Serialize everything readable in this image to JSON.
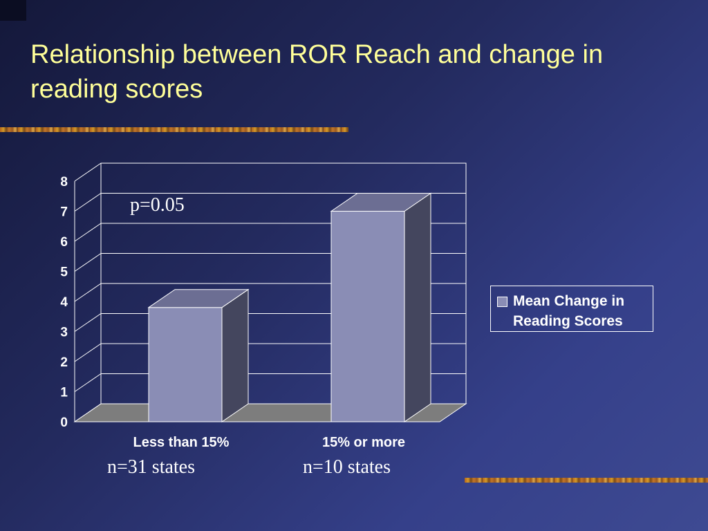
{
  "slide": {
    "title": "Relationship between ROR Reach and change in reading scores"
  },
  "annotations": {
    "p_value": "p=0.05",
    "group_counts": [
      "n=31 states",
      "n=10 states"
    ]
  },
  "colors": {
    "bar_front": "#8a8db5",
    "bar_top": "#6c6e93",
    "bar_side": "#44465e",
    "floor": "#7d7d7d",
    "title": "#ffff99"
  },
  "chart_data": {
    "type": "bar",
    "categories": [
      "Less than 15%",
      "15% or more"
    ],
    "series": [
      {
        "name": "Mean Change in Reading Scores",
        "values": [
          3.8,
          7.0
        ]
      }
    ],
    "title": "",
    "xlabel": "",
    "ylabel": "",
    "ylim": [
      0,
      8
    ],
    "yticks": [
      0,
      1,
      2,
      3,
      4,
      5,
      6,
      7,
      8
    ],
    "grid": true,
    "legend": "right",
    "style": "3d"
  }
}
